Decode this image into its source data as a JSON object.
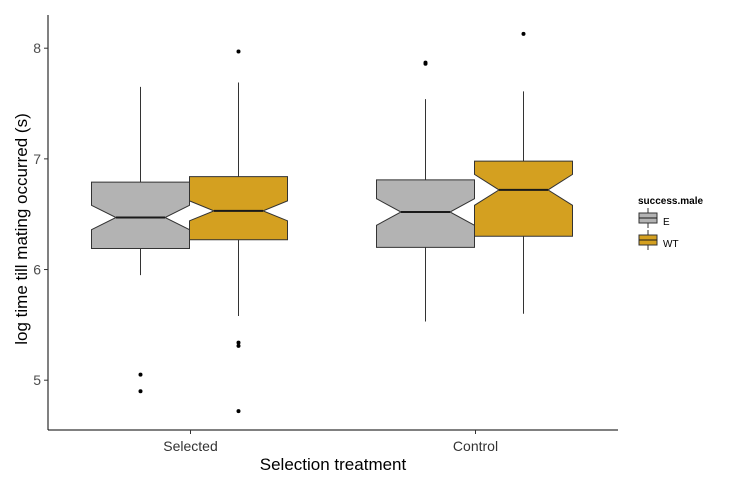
{
  "chart_data": {
    "type": "boxplot",
    "notched": true,
    "xlabel": "Selection treatment",
    "ylabel": "log time till mating occurred (s)",
    "categories": [
      "Selected",
      "Control"
    ],
    "y_ticks": [
      5,
      6,
      7,
      8
    ],
    "ylim": [
      4.55,
      8.3
    ],
    "grid": false,
    "legend": {
      "title": "success.male",
      "position": "right",
      "entries": [
        {
          "label": "E",
          "color": "#b3b3b3"
        },
        {
          "label": "WT",
          "color": "#d4a020"
        }
      ]
    },
    "series": [
      {
        "name": "E",
        "color": "#b3b3b3",
        "boxes": [
          {
            "category": "Selected",
            "whisker_low": 5.95,
            "q1": 6.19,
            "notch_low": 6.36,
            "median": 6.47,
            "notch_high": 6.58,
            "q3": 6.79,
            "whisker_high": 7.65,
            "outliers": [
              5.05,
              4.9
            ]
          },
          {
            "category": "Control",
            "whisker_low": 5.53,
            "q1": 6.2,
            "notch_low": 6.4,
            "median": 6.52,
            "notch_high": 6.64,
            "q3": 6.81,
            "whisker_high": 7.54,
            "outliers": [
              7.86,
              7.87
            ]
          }
        ]
      },
      {
        "name": "WT",
        "color": "#d4a020",
        "boxes": [
          {
            "category": "Selected",
            "whisker_low": 5.58,
            "q1": 6.27,
            "notch_low": 6.44,
            "median": 6.53,
            "notch_high": 6.62,
            "q3": 6.84,
            "whisker_high": 7.69,
            "outliers": [
              7.97,
              5.34,
              5.31,
              4.72
            ]
          },
          {
            "category": "Control",
            "whisker_low": 5.6,
            "q1": 6.3,
            "notch_low": 6.58,
            "median": 6.72,
            "notch_high": 6.86,
            "q3": 6.98,
            "whisker_high": 7.61,
            "outliers": [
              8.13
            ]
          }
        ]
      }
    ]
  }
}
